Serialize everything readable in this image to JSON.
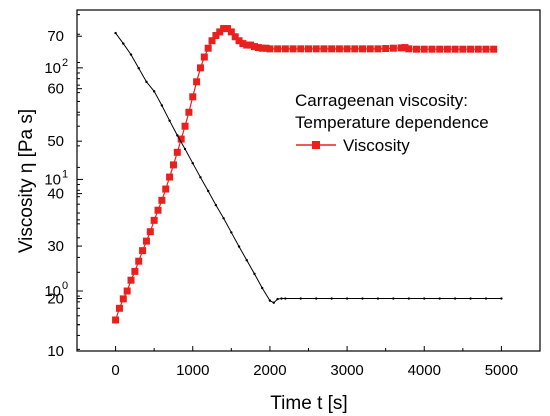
{
  "chart_data": {
    "type": "line",
    "xlabel": "Time t [s]",
    "ylabel": "Viscosity η [Pa s]",
    "legend": {
      "title_lines": [
        "Carrageenan viscosity:",
        "Temperature dependence"
      ],
      "entries": [
        "Viscosity"
      ],
      "placement": "top-right"
    },
    "xlim": [
      -500,
      5500
    ],
    "x_ticks": [
      {
        "v": 0,
        "label": "0"
      },
      {
        "v": 1000,
        "label": "1000"
      },
      {
        "v": 2000,
        "label": "2000"
      },
      {
        "v": 3000,
        "label": "3000"
      },
      {
        "v": 4000,
        "label": "4000"
      },
      {
        "v": 5000,
        "label": "5000"
      }
    ],
    "left_axis": {
      "quantity": "temperature",
      "range": [
        10,
        75
      ],
      "ticks": [
        {
          "v": 10,
          "label": "10"
        },
        {
          "v": 20,
          "label": "20"
        },
        {
          "v": 30,
          "label": "30"
        },
        {
          "v": 40,
          "label": "40"
        },
        {
          "v": 50,
          "label": "50"
        },
        {
          "v": 60,
          "label": "60"
        },
        {
          "v": 70,
          "label": "70"
        }
      ]
    },
    "right_axis_scale": "log",
    "viscosity_axis": {
      "scale": "log",
      "range": [
        0.29,
        330
      ],
      "ticks": [
        {
          "v": 1,
          "base": "10",
          "exp": "0"
        },
        {
          "v": 10,
          "base": "10",
          "exp": "1"
        },
        {
          "v": 100,
          "base": "10",
          "exp": "2"
        }
      ]
    },
    "series": [
      {
        "name": "Viscosity",
        "color": "#e8201e",
        "marker": "square",
        "axis": "viscosity",
        "x": [
          0,
          50,
          100,
          150,
          200,
          250,
          300,
          350,
          400,
          450,
          500,
          550,
          600,
          650,
          700,
          750,
          800,
          850,
          900,
          950,
          1000,
          1050,
          1100,
          1150,
          1200,
          1250,
          1300,
          1350,
          1400,
          1450,
          1500,
          1550,
          1600,
          1650,
          1700,
          1750,
          1800,
          1850,
          1900,
          1950,
          2000,
          2100,
          2200,
          2300,
          2400,
          2500,
          2600,
          2700,
          2800,
          2900,
          3000,
          3100,
          3200,
          3300,
          3400,
          3500,
          3600,
          3700,
          3750,
          3800,
          3900,
          4000,
          4100,
          4200,
          4300,
          4400,
          4500,
          4600,
          4700,
          4800,
          4900
        ],
        "y": [
          0.55,
          0.7,
          0.85,
          1.0,
          1.25,
          1.5,
          1.85,
          2.3,
          2.8,
          3.4,
          4.3,
          5.3,
          6.5,
          8.2,
          10.5,
          13.5,
          17.5,
          23,
          30,
          40,
          55,
          75,
          100,
          125,
          150,
          175,
          195,
          210,
          225,
          225,
          210,
          190,
          175,
          165,
          160,
          160,
          155,
          152,
          150,
          150,
          148,
          148,
          148,
          148,
          148,
          148,
          148,
          148,
          148,
          148,
          148,
          148,
          148,
          148,
          148,
          149,
          150,
          151,
          152,
          148,
          147,
          147,
          147,
          147,
          147,
          147,
          147,
          147,
          147,
          147,
          147
        ]
      },
      {
        "name": "",
        "color": "#000000",
        "marker": "dot",
        "axis": "temperature",
        "x": [
          0,
          100,
          200,
          300,
          400,
          500,
          600,
          700,
          800,
          900,
          1000,
          1100,
          1200,
          1300,
          1400,
          1500,
          1600,
          1700,
          1800,
          1900,
          2000,
          2050,
          2100,
          2150,
          2200,
          2400,
          2600,
          2800,
          3000,
          3200,
          3400,
          3600,
          3800,
          4000,
          4200,
          4400,
          4600,
          4800,
          5000
        ],
        "y": [
          70.6,
          68.6,
          66.5,
          63.9,
          61.3,
          59.5,
          56.8,
          53.9,
          51.1,
          48.5,
          45.8,
          43.1,
          40.5,
          37.8,
          35.3,
          32.6,
          29.9,
          27.3,
          24.7,
          22.0,
          19.6,
          19.2,
          19.9,
          20.0,
          20.0,
          20.0,
          20.0,
          20.0,
          20.0,
          20.0,
          20.0,
          20.0,
          20.0,
          20.0,
          20.0,
          20.0,
          20.0,
          20.0,
          20.0
        ]
      }
    ]
  }
}
